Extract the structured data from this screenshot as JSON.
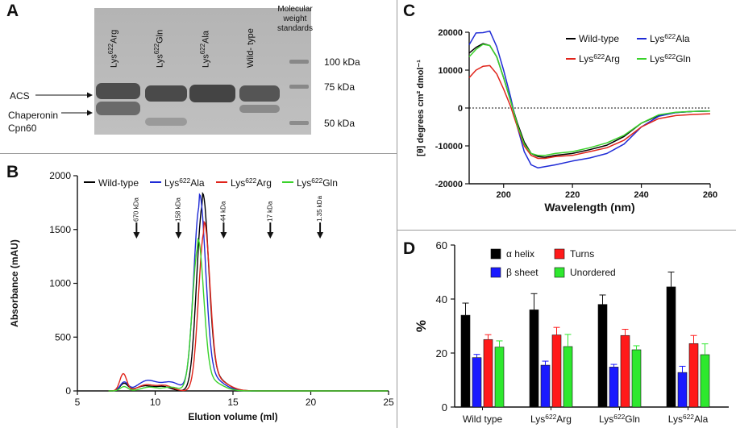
{
  "panel_labels": {
    "a": "A",
    "b": "B",
    "c": "C",
    "d": "D"
  },
  "panel_a": {
    "lanes": [
      "Lys622Arg",
      "Lys622Gln",
      "Lys622Ala",
      "Wild- type"
    ],
    "lane_parts": [
      {
        "prefix": "Lys",
        "sup": "622",
        "suffix": "Arg"
      },
      {
        "prefix": "Lys",
        "sup": "622",
        "suffix": "Gln"
      },
      {
        "prefix": "Lys",
        "sup": "622",
        "suffix": "Ala"
      },
      {
        "prefix": "Wild- type",
        "sup": "",
        "suffix": ""
      }
    ],
    "standards_label": [
      "Molecular",
      "weight",
      "standards"
    ],
    "mw_markers": [
      "100 kDa",
      "75 kDa",
      "50 kDa"
    ],
    "left_labels": {
      "acs": "ACS",
      "chaperonin_line1": "Chaperonin",
      "chaperonin_line2": "Cpn60"
    }
  },
  "chart_data": [
    {
      "id": "B",
      "type": "line",
      "xlabel": "Elution volume (ml)",
      "ylabel": "Absorbance (mAU)",
      "xlim": [
        5,
        25
      ],
      "ylim": [
        0,
        2000
      ],
      "xticks": [
        5,
        10,
        15,
        20,
        25
      ],
      "yticks": [
        0,
        500,
        1000,
        1500,
        2000
      ],
      "legend": [
        {
          "name": "Wild-type",
          "color": "#000000",
          "sup": "",
          "prefix": "Wild-type",
          "suffix": ""
        },
        {
          "name": "Lys622Ala",
          "color": "#1f2bd6",
          "prefix": "Lys",
          "sup": "622",
          "suffix": "Ala"
        },
        {
          "name": "Lys622Arg",
          "color": "#e0241b",
          "prefix": "Lys",
          "sup": "622",
          "suffix": "Arg"
        },
        {
          "name": "Lys622Gln",
          "color": "#39d22a",
          "prefix": "Lys",
          "sup": "622",
          "suffix": "Gln"
        }
      ],
      "standards": [
        {
          "label": "670 kDa",
          "x": 8.8
        },
        {
          "label": "158 kDa",
          "x": 11.5
        },
        {
          "label": "44 kDa",
          "x": 14.4
        },
        {
          "label": "17 kDa",
          "x": 17.4
        },
        {
          "label": "1.35 kDa",
          "x": 20.6
        }
      ],
      "series": [
        {
          "name": "Wild-type",
          "color": "#000000",
          "peak_x": 13.05,
          "peak_y": 1730,
          "sigma": 0.38,
          "shoulder": [
            [
              8.0,
              70,
              0.25
            ],
            [
              9.3,
              45,
              0.5
            ],
            [
              10.5,
              40,
              0.5
            ]
          ]
        },
        {
          "name": "Lys622Ala",
          "color": "#1f2bd6",
          "peak_x": 12.85,
          "peak_y": 1720,
          "sigma": 0.38,
          "shoulder": [
            [
              8.0,
              80,
              0.25
            ],
            [
              9.5,
              95,
              0.6
            ],
            [
              11.0,
              80,
              0.6
            ]
          ]
        },
        {
          "name": "Lys622Arg",
          "color": "#e0241b",
          "peak_x": 13.15,
          "peak_y": 1480,
          "sigma": 0.36,
          "shoulder": [
            [
              7.95,
              160,
              0.22
            ],
            [
              9.4,
              55,
              0.5
            ],
            [
              10.6,
              50,
              0.5
            ]
          ]
        },
        {
          "name": "Lys622Gln",
          "color": "#39d22a",
          "peak_x": 12.75,
          "peak_y": 1330,
          "sigma": 0.36,
          "shoulder": [
            [
              8.0,
              40,
              0.25
            ],
            [
              9.6,
              35,
              0.5
            ],
            [
              11.0,
              35,
              0.5
            ]
          ]
        }
      ]
    },
    {
      "id": "C",
      "type": "line",
      "xlabel": "Wavelength (nm)",
      "ylabel": "[θ] degrees cm² dmol⁻¹",
      "xlim": [
        190,
        260
      ],
      "ylim": [
        -20000,
        20000
      ],
      "xticks": [
        200,
        220,
        240,
        260
      ],
      "yticks": [
        -20000,
        -10000,
        0,
        10000,
        20000
      ],
      "legend": [
        {
          "name": "Wild-type",
          "color": "#000000",
          "prefix": "Wild-type",
          "sup": "",
          "suffix": ""
        },
        {
          "name": "Lys622Ala",
          "color": "#1f2bd6",
          "prefix": "Lys",
          "sup": "622",
          "suffix": "Ala"
        },
        {
          "name": "Lys622Arg",
          "color": "#e0241b",
          "prefix": "Lys",
          "sup": "622",
          "suffix": "Arg"
        },
        {
          "name": "Lys622Gln",
          "color": "#39d22a",
          "prefix": "Lys",
          "sup": "622",
          "suffix": "Gln"
        }
      ],
      "series": [
        {
          "name": "Wild-type",
          "color": "#000000",
          "points": [
            [
              190,
              14500
            ],
            [
              192,
              16000
            ],
            [
              194,
              17000
            ],
            [
              196,
              16500
            ],
            [
              198,
              13500
            ],
            [
              200,
              8000
            ],
            [
              202,
              2000
            ],
            [
              204,
              -4000
            ],
            [
              206,
              -9000
            ],
            [
              208,
              -12000
            ],
            [
              210,
              -12800
            ],
            [
              212,
              -13000
            ],
            [
              215,
              -12500
            ],
            [
              220,
              -12000
            ],
            [
              225,
              -11000
            ],
            [
              230,
              -9800
            ],
            [
              235,
              -7500
            ],
            [
              240,
              -4000
            ],
            [
              245,
              -2000
            ],
            [
              250,
              -1200
            ],
            [
              255,
              -900
            ],
            [
              260,
              -800
            ]
          ]
        },
        {
          "name": "Lys622Ala",
          "color": "#1f2bd6",
          "points": [
            [
              190,
              17000
            ],
            [
              192,
              19500
            ],
            [
              194,
              20200
            ],
            [
              196,
              20000
            ],
            [
              198,
              16500
            ],
            [
              200,
              10000
            ],
            [
              202,
              3000
            ],
            [
              204,
              -5000
            ],
            [
              206,
              -11500
            ],
            [
              208,
              -15000
            ],
            [
              210,
              -15800
            ],
            [
              212,
              -15500
            ],
            [
              215,
              -15000
            ],
            [
              220,
              -14000
            ],
            [
              225,
              -13200
            ],
            [
              230,
              -12000
            ],
            [
              235,
              -9500
            ],
            [
              240,
              -5000
            ],
            [
              245,
              -2200
            ],
            [
              250,
              -1200
            ],
            [
              255,
              -900
            ],
            [
              260,
              -800
            ]
          ]
        },
        {
          "name": "Lys622Arg",
          "color": "#e0241b",
          "points": [
            [
              190,
              8000
            ],
            [
              192,
              10000
            ],
            [
              194,
              11000
            ],
            [
              196,
              11200
            ],
            [
              198,
              9000
            ],
            [
              200,
              5000
            ],
            [
              202,
              500
            ],
            [
              204,
              -5000
            ],
            [
              206,
              -10000
            ],
            [
              208,
              -12500
            ],
            [
              210,
              -13300
            ],
            [
              212,
              -13300
            ],
            [
              215,
              -12800
            ],
            [
              220,
              -12500
            ],
            [
              225,
              -11500
            ],
            [
              230,
              -10500
            ],
            [
              235,
              -8500
            ],
            [
              240,
              -5000
            ],
            [
              245,
              -2800
            ],
            [
              250,
              -2000
            ],
            [
              255,
              -1700
            ],
            [
              260,
              -1500
            ]
          ]
        },
        {
          "name": "Lys622Gln",
          "color": "#39d22a",
          "points": [
            [
              190,
              13500
            ],
            [
              192,
              15500
            ],
            [
              194,
              16800
            ],
            [
              196,
              16500
            ],
            [
              198,
              13500
            ],
            [
              200,
              8000
            ],
            [
              202,
              2000
            ],
            [
              204,
              -4500
            ],
            [
              206,
              -9500
            ],
            [
              208,
              -12000
            ],
            [
              210,
              -12500
            ],
            [
              212,
              -12500
            ],
            [
              215,
              -12000
            ],
            [
              220,
              -11500
            ],
            [
              225,
              -10500
            ],
            [
              230,
              -9200
            ],
            [
              235,
              -7200
            ],
            [
              240,
              -4000
            ],
            [
              245,
              -1800
            ],
            [
              250,
              -1100
            ],
            [
              255,
              -900
            ],
            [
              260,
              -800
            ]
          ]
        }
      ]
    },
    {
      "id": "D",
      "type": "bar",
      "ylabel": "%",
      "ylim": [
        0,
        60
      ],
      "yticks": [
        0,
        20,
        40,
        60
      ],
      "categories": [
        {
          "label": "Wild type",
          "prefix": "Wild type",
          "sup": "",
          "suffix": ""
        },
        {
          "label": "Lys622Arg",
          "prefix": "Lys",
          "sup": "622",
          "suffix": "Arg"
        },
        {
          "label": "Lys622Gln",
          "prefix": "Lys",
          "sup": "622",
          "suffix": "Gln"
        },
        {
          "label": "Lys622Ala",
          "prefix": "Lys",
          "sup": "622",
          "suffix": "Ala"
        }
      ],
      "legend": [
        {
          "name": "α helix",
          "color": "#000000"
        },
        {
          "name": "Turns",
          "color": "#ff1a1a"
        },
        {
          "name": "β sheet",
          "color": "#1a1aff"
        },
        {
          "name": "Unordered",
          "color": "#2ee82e"
        }
      ],
      "series": [
        {
          "name": "α helix",
          "color": "#000000",
          "values": [
            34,
            36,
            38,
            44.5
          ],
          "errors": [
            4.5,
            6,
            3.5,
            5.5
          ]
        },
        {
          "name": "β sheet",
          "color": "#1a1aff",
          "values": [
            18.3,
            15.5,
            14.8,
            12.8
          ],
          "errors": [
            1.2,
            1.5,
            1,
            2.3
          ]
        },
        {
          "name": "Turns",
          "color": "#ff1a1a",
          "values": [
            25,
            26.7,
            26.5,
            23.5
          ],
          "errors": [
            1.8,
            2.8,
            2.3,
            3
          ]
        },
        {
          "name": "Unordered",
          "color": "#2ee82e",
          "values": [
            22.2,
            22.4,
            21.2,
            19.4
          ],
          "errors": [
            2.3,
            4.5,
            1.5,
            4
          ]
        }
      ]
    }
  ]
}
